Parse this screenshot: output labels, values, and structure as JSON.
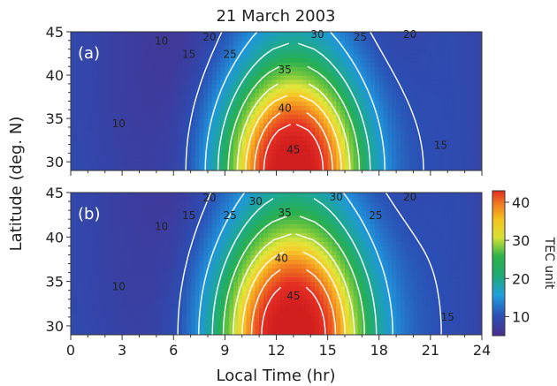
{
  "chart_data": {
    "type": "heatmap",
    "title": "21 March 2003",
    "xlabel": "Local Time (hr)",
    "ylabel": "Latitude (deg. N)",
    "xlim": [
      0,
      24
    ],
    "ylim": [
      29,
      45
    ],
    "x_ticks": [
      0,
      3,
      6,
      9,
      12,
      15,
      18,
      21,
      24
    ],
    "y_ticks": [
      30,
      35,
      40,
      45
    ],
    "colorbar": {
      "label": "TEC unit",
      "range": [
        5,
        43
      ],
      "ticks": [
        10,
        20,
        30,
        40
      ]
    },
    "panels": [
      {
        "tag": "(a)",
        "peak": {
          "time": 13,
          "latitude": 29,
          "value": 47
        },
        "contour_labels": [
          {
            "value": 10,
            "x": 5.3,
            "y": 43.5
          },
          {
            "value": 15,
            "x": 6.9,
            "y": 42.0
          },
          {
            "value": 20,
            "x": 8.1,
            "y": 44.0
          },
          {
            "value": 25,
            "x": 9.3,
            "y": 42.0
          },
          {
            "value": 10,
            "x": 2.8,
            "y": 34.0
          },
          {
            "value": 30,
            "x": 14.4,
            "y": 44.3
          },
          {
            "value": 25,
            "x": 16.9,
            "y": 44.0
          },
          {
            "value": 20,
            "x": 19.8,
            "y": 44.3
          },
          {
            "value": 35,
            "x": 12.5,
            "y": 40.2
          },
          {
            "value": 40,
            "x": 12.5,
            "y": 35.8
          },
          {
            "value": 45,
            "x": 13.0,
            "y": 31.0
          },
          {
            "value": 15,
            "x": 21.6,
            "y": 31.5
          }
        ]
      },
      {
        "tag": "(b)",
        "peak": {
          "time": 13,
          "latitude": 29,
          "value": 47
        },
        "contour_labels": [
          {
            "value": 10,
            "x": 5.3,
            "y": 40.8
          },
          {
            "value": 15,
            "x": 6.9,
            "y": 42.0
          },
          {
            "value": 20,
            "x": 8.1,
            "y": 44.0
          },
          {
            "value": 25,
            "x": 9.3,
            "y": 42.0
          },
          {
            "value": 30,
            "x": 10.8,
            "y": 43.6
          },
          {
            "value": 35,
            "x": 12.5,
            "y": 42.3
          },
          {
            "value": 30,
            "x": 15.5,
            "y": 44.1
          },
          {
            "value": 25,
            "x": 17.8,
            "y": 42.0
          },
          {
            "value": 20,
            "x": 19.8,
            "y": 44.1
          },
          {
            "value": 10,
            "x": 2.8,
            "y": 34.0
          },
          {
            "value": 40,
            "x": 12.3,
            "y": 37.2
          },
          {
            "value": 45,
            "x": 13.0,
            "y": 33.0
          },
          {
            "value": 15,
            "x": 22.0,
            "y": 30.6
          }
        ]
      }
    ],
    "contour_levels": [
      10,
      15,
      20,
      25,
      30,
      35,
      40,
      45
    ]
  }
}
